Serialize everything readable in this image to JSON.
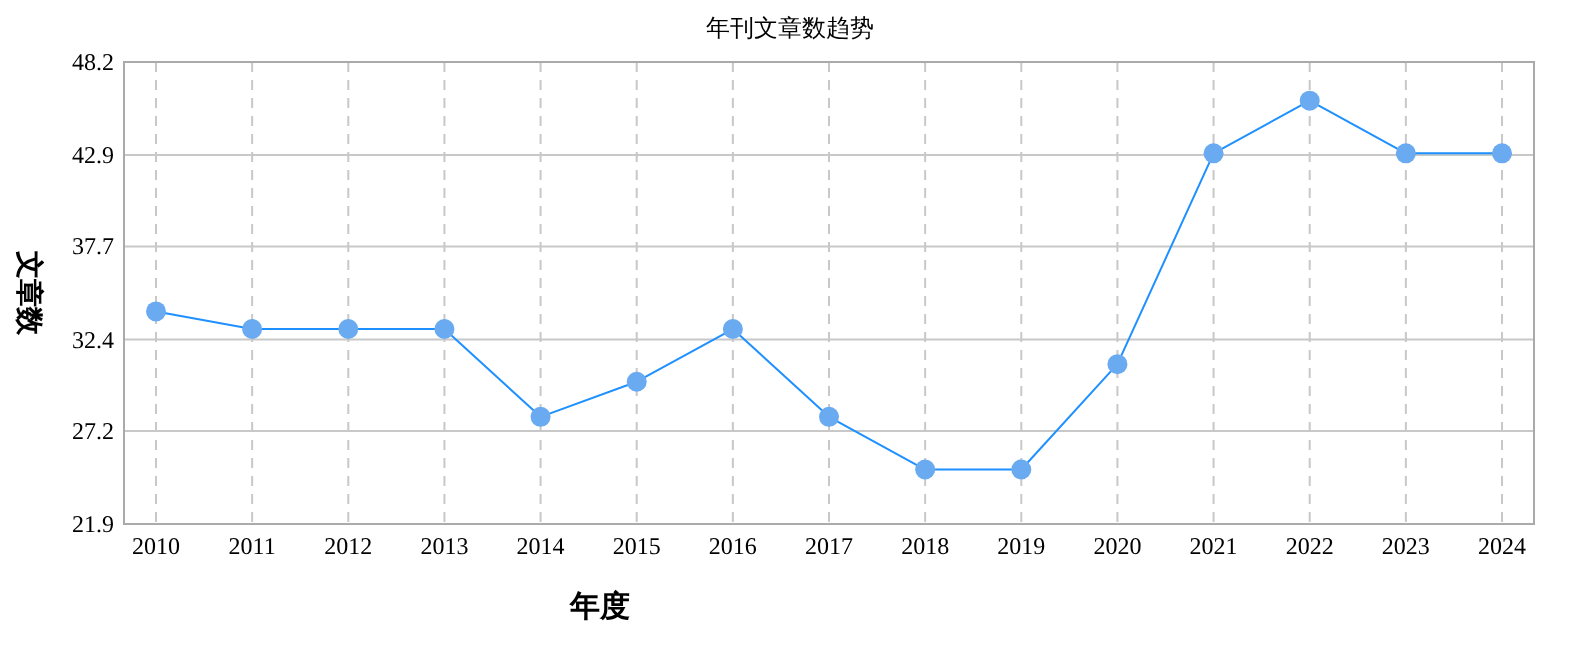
{
  "chart_data": {
    "type": "line",
    "title": "年刊文章数趋势",
    "xlabel": "年度",
    "ylabel": "文章数",
    "categories": [
      "2010",
      "2011",
      "2012",
      "2013",
      "2014",
      "2015",
      "2016",
      "2017",
      "2018",
      "2019",
      "2020",
      "2021",
      "2022",
      "2023",
      "2024"
    ],
    "series": [
      {
        "color": "#1e90ff",
        "values": [
          34,
          33,
          33,
          33,
          28,
          30,
          33,
          28,
          25,
          25,
          31,
          43,
          46,
          43,
          43
        ]
      }
    ],
    "ylim": [
      21.9,
      48.2
    ],
    "yticks": [
      21.9,
      27.2,
      32.4,
      37.7,
      42.9,
      48.2
    ],
    "grid": true,
    "marker": "circle",
    "line_style": "solid"
  }
}
